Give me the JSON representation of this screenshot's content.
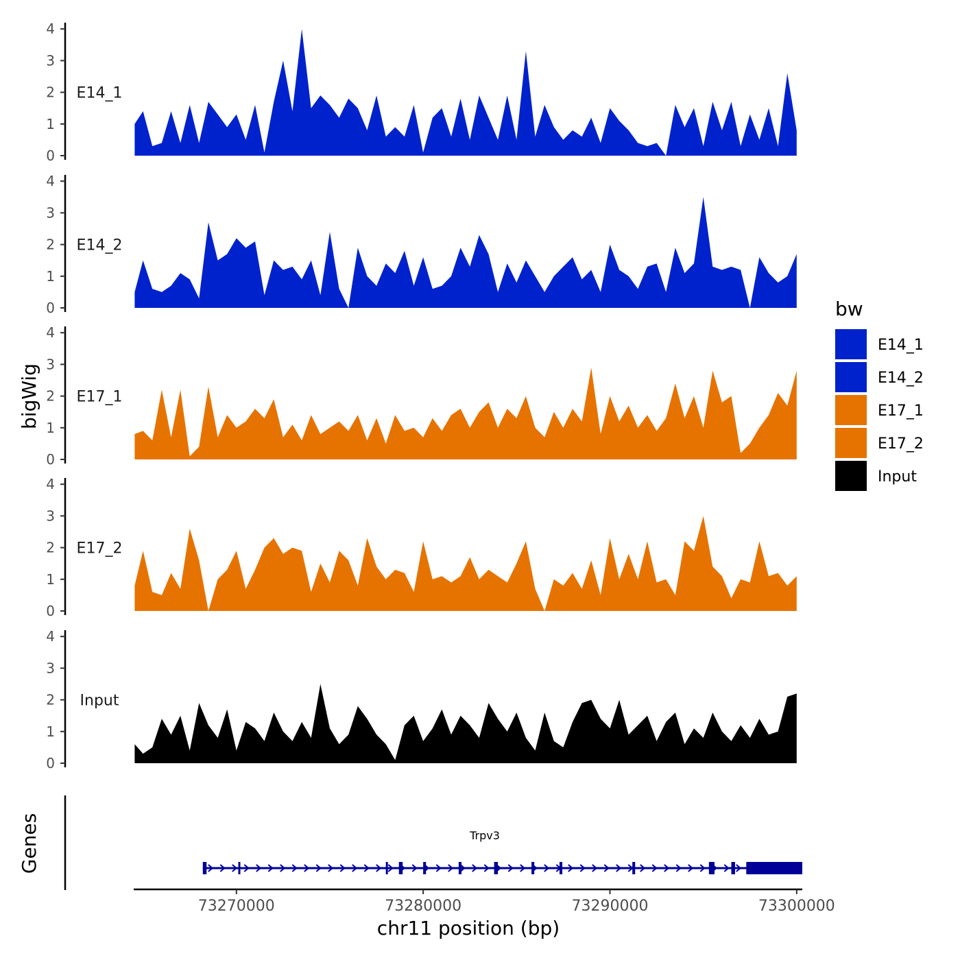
{
  "chart_data": {
    "type": "area",
    "ylabel": "bigWig",
    "xlabel": "chr11 position (bp)",
    "x_range": [
      73264500,
      73300300
    ],
    "xticks": [
      {
        "value": 73270000,
        "label": "73270000"
      },
      {
        "value": 73280000,
        "label": "73280000"
      },
      {
        "value": 73290000,
        "label": "73290000"
      },
      {
        "value": 73300000,
        "label": "73300000"
      }
    ],
    "ylim": [
      0,
      4.2
    ],
    "yticks": [
      {
        "value": 0,
        "label": "0"
      },
      {
        "value": 1,
        "label": "1"
      },
      {
        "value": 2,
        "label": "2"
      },
      {
        "value": 3,
        "label": "3"
      },
      {
        "value": 4,
        "label": "4"
      }
    ],
    "legend": {
      "title": "bw",
      "position": "right",
      "items": [
        {
          "label": "E14_1",
          "color": "#0022CC"
        },
        {
          "label": "E14_2",
          "color": "#0022CC"
        },
        {
          "label": "E17_1",
          "color": "#E67300"
        },
        {
          "label": "E17_2",
          "color": "#E67300"
        },
        {
          "label": "Input",
          "color": "#000000"
        }
      ]
    },
    "track_x": [
      73264550,
      73265000,
      73265500,
      73266000,
      73266500,
      73267000,
      73267500,
      73268000,
      73268500,
      73269000,
      73269500,
      73270000,
      73270500,
      73271000,
      73271500,
      73272000,
      73272500,
      73273000,
      73273500,
      73274000,
      73274500,
      73275000,
      73275500,
      73276000,
      73276500,
      73277000,
      73277500,
      73278000,
      73278500,
      73279000,
      73279500,
      73280000,
      73280500,
      73281000,
      73281500,
      73282000,
      73282500,
      73283000,
      73283500,
      73284000,
      73284500,
      73285000,
      73285500,
      73286000,
      73286500,
      73287000,
      73287500,
      73288000,
      73288500,
      73289000,
      73289500,
      73290000,
      73290500,
      73291000,
      73291500,
      73292000,
      73292500,
      73293000,
      73293500,
      73294000,
      73294500,
      73295000,
      73295500,
      73296000,
      73296500,
      73297000,
      73297500,
      73298000,
      73298500,
      73299000,
      73299500,
      73300000
    ],
    "series": [
      {
        "name": "E14_1",
        "color": "#0022CC",
        "values": [
          1.0,
          1.4,
          0.3,
          0.4,
          1.4,
          0.4,
          1.6,
          0.4,
          1.7,
          1.3,
          0.9,
          1.3,
          0.5,
          1.6,
          0.1,
          1.7,
          3.0,
          1.4,
          4.0,
          1.5,
          1.9,
          1.6,
          1.2,
          1.8,
          1.5,
          0.8,
          1.9,
          0.6,
          0.9,
          0.6,
          1.6,
          0.1,
          1.2,
          1.5,
          0.6,
          1.8,
          0.5,
          1.9,
          1.2,
          0.5,
          1.9,
          0.5,
          3.3,
          0.6,
          1.6,
          0.9,
          0.5,
          0.8,
          0.6,
          1.2,
          0.4,
          1.5,
          1.1,
          0.8,
          0.4,
          0.3,
          0.4,
          0.0,
          1.6,
          0.9,
          1.5,
          0.3,
          1.7,
          0.8,
          1.7,
          0.3,
          1.3,
          0.5,
          1.5,
          0.3,
          2.6,
          0.8
        ]
      },
      {
        "name": "E14_2",
        "color": "#0022CC",
        "values": [
          0.5,
          1.5,
          0.6,
          0.5,
          0.7,
          1.1,
          0.9,
          0.3,
          2.7,
          1.5,
          1.7,
          2.2,
          1.9,
          2.1,
          0.4,
          1.5,
          1.2,
          1.3,
          0.9,
          1.5,
          0.4,
          2.4,
          0.6,
          0.0,
          1.9,
          1.0,
          0.7,
          1.4,
          1.1,
          1.8,
          0.7,
          1.6,
          0.6,
          0.7,
          1.0,
          1.9,
          1.3,
          2.3,
          1.7,
          0.5,
          1.4,
          0.8,
          1.5,
          1.0,
          0.5,
          1.0,
          1.3,
          1.6,
          0.9,
          1.2,
          0.5,
          2.0,
          1.2,
          1.0,
          0.6,
          1.3,
          1.4,
          0.5,
          1.9,
          1.1,
          1.4,
          3.5,
          1.3,
          1.2,
          1.3,
          1.2,
          0.0,
          1.6,
          1.1,
          0.8,
          1.0,
          1.7
        ]
      },
      {
        "name": "E17_1",
        "color": "#E67300",
        "values": [
          0.8,
          0.9,
          0.6,
          2.2,
          0.7,
          2.2,
          0.1,
          0.4,
          2.3,
          0.7,
          1.4,
          1.0,
          1.2,
          1.6,
          1.3,
          1.9,
          0.7,
          1.1,
          0.6,
          1.4,
          0.8,
          1.0,
          1.2,
          0.9,
          1.4,
          0.6,
          1.3,
          0.5,
          1.4,
          0.9,
          1.0,
          0.7,
          1.3,
          0.9,
          1.4,
          1.6,
          1.0,
          1.5,
          1.8,
          1.0,
          1.6,
          1.3,
          2.0,
          1.0,
          0.7,
          1.5,
          1.0,
          1.6,
          1.2,
          2.9,
          0.8,
          2.0,
          1.2,
          1.7,
          1.0,
          1.4,
          0.9,
          1.3,
          2.4,
          1.3,
          2.0,
          1.0,
          2.8,
          1.8,
          2.0,
          0.2,
          0.5,
          1.0,
          1.4,
          2.1,
          1.7,
          2.8
        ]
      },
      {
        "name": "E17_2",
        "color": "#E67300",
        "values": [
          0.8,
          1.9,
          0.6,
          0.5,
          1.2,
          0.7,
          2.6,
          1.6,
          0.0,
          1.0,
          1.3,
          1.9,
          0.7,
          1.3,
          2.0,
          2.3,
          1.8,
          2.0,
          1.9,
          0.6,
          1.5,
          0.9,
          1.9,
          1.6,
          0.8,
          2.3,
          1.4,
          1.0,
          1.3,
          1.2,
          0.6,
          2.2,
          1.0,
          1.1,
          0.9,
          1.1,
          1.7,
          1.0,
          1.3,
          1.1,
          0.9,
          1.5,
          2.2,
          0.7,
          0.0,
          1.0,
          0.8,
          1.2,
          0.7,
          1.6,
          0.5,
          2.3,
          1.0,
          1.8,
          1.0,
          2.2,
          0.9,
          1.0,
          0.5,
          2.2,
          1.9,
          3.0,
          1.4,
          1.1,
          0.4,
          1.0,
          0.9,
          2.2,
          1.1,
          1.2,
          0.8,
          1.1
        ]
      },
      {
        "name": "Input",
        "color": "#000000",
        "values": [
          0.6,
          0.3,
          0.5,
          1.4,
          0.9,
          1.5,
          0.4,
          1.9,
          1.2,
          0.8,
          1.7,
          0.4,
          1.3,
          1.1,
          0.7,
          1.6,
          1.0,
          0.7,
          1.3,
          0.8,
          2.5,
          1.1,
          0.6,
          0.9,
          1.8,
          1.4,
          0.9,
          0.6,
          0.1,
          1.2,
          1.5,
          0.7,
          1.1,
          1.7,
          0.9,
          1.5,
          1.2,
          0.8,
          1.9,
          1.4,
          1.0,
          1.6,
          0.8,
          0.4,
          1.6,
          0.7,
          0.5,
          1.3,
          1.9,
          2.0,
          1.4,
          1.1,
          2.0,
          0.9,
          1.2,
          1.5,
          0.7,
          1.3,
          1.6,
          0.6,
          1.1,
          0.8,
          1.6,
          1.0,
          0.7,
          1.2,
          0.8,
          1.4,
          0.9,
          1.0,
          2.1,
          2.2
        ]
      }
    ],
    "gene_track": {
      "title": "Genes",
      "gene": {
        "name": "Trpv3",
        "start": 73268200,
        "end": 73300300,
        "strand": "+",
        "color": "#000099",
        "exons": [
          [
            73268200,
            73268400
          ],
          [
            73270100,
            73270200
          ],
          [
            73278000,
            73278100
          ],
          [
            73278700,
            73278900
          ],
          [
            73280000,
            73280150
          ],
          [
            73281900,
            73282050
          ],
          [
            73283800,
            73284000
          ],
          [
            73285800,
            73285950
          ],
          [
            73287300,
            73287450
          ],
          [
            73291200,
            73291350
          ],
          [
            73295300,
            73295600
          ],
          [
            73296500,
            73296700
          ],
          [
            73297300,
            73300300
          ]
        ]
      }
    }
  }
}
